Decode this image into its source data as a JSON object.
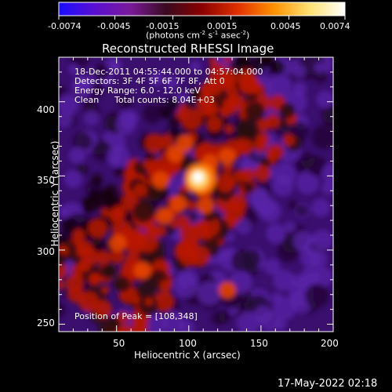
{
  "chart_data": {
    "type": "heatmap",
    "title": "Reconstructed RHESSI Image",
    "xlabel": "Heliocentric X (arcsec)",
    "ylabel": "Heliocentric Y (arcsec)",
    "xlim": [
      10,
      200
    ],
    "ylim": [
      245,
      430
    ],
    "xticks": [
      50,
      100,
      150,
      200
    ],
    "yticks": [
      250,
      300,
      350,
      400
    ],
    "grid": false,
    "colorbar": {
      "range": [
        -0.0074,
        0.0074
      ],
      "ticks": [
        -0.0074,
        -0.0045,
        -0.0015,
        0.0015,
        0.0045,
        0.0074
      ],
      "tick_labels": [
        "-0.0074",
        "-0.0045",
        "-0.0015",
        "0.0015",
        "0.0045",
        "0.0074"
      ],
      "label": "(photons cm-2 s-1 asec-2)",
      "colors": [
        "#1a0dff",
        "#5a0fd0",
        "#7a1a9a",
        "#3a0a20",
        "#8a0000",
        "#e03000",
        "#ff9000",
        "#ffe070",
        "#ffffff"
      ]
    },
    "annotations": {
      "time_range": "18-Dec-2011 04:55:44.000 to 04:57:04.000",
      "detectors": "Detectors: 3F 4F 5F 6F 7F 8F, Att 0",
      "energy_range": "Energy Range: 6.0 - 12.0 keV",
      "algorithm": "Clean",
      "total_counts": "Total counts: 8.04E+03",
      "peak": "Position of Peak = [108,348]"
    },
    "peak": {
      "x": 108,
      "y": 348
    }
  },
  "timestamp": "17-May-2022 02:18"
}
